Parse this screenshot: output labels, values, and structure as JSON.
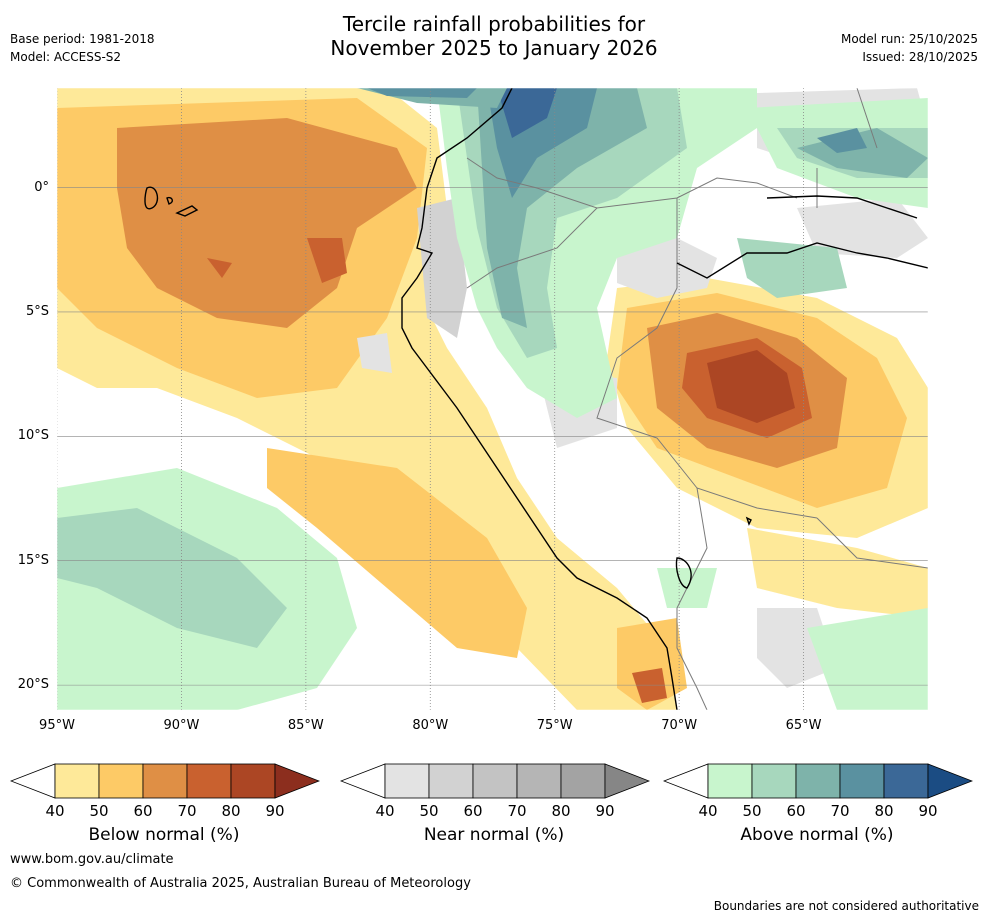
{
  "header": {
    "title_line1": "Tercile rainfall probabilities for",
    "title_line2": "November 2025 to January 2026",
    "base_period": "Base period: 1981-2018",
    "model": "Model: ACCESS-S2",
    "model_run": "Model run: 25/10/2025",
    "issued": "Issued: 28/10/2025"
  },
  "map": {
    "lon_labels": [
      "95°W",
      "90°W",
      "85°W",
      "80°W",
      "75°W",
      "70°W",
      "65°W"
    ],
    "lat_labels": [
      "0°",
      "5°S",
      "10°S",
      "15°S",
      "20°S"
    ],
    "lon_values": [
      -95,
      -90,
      -85,
      -80,
      -75,
      -70,
      -65
    ],
    "lat_values": [
      0,
      -5,
      -10,
      -15,
      -20
    ],
    "extent": {
      "lon_min": -95,
      "lon_max": -60,
      "lat_min": -21,
      "lat_max": 4
    }
  },
  "colorbars": [
    {
      "label": "Below normal (%)",
      "ticks": [
        "40",
        "50",
        "60",
        "70",
        "80",
        "90"
      ],
      "colors": [
        "#fee999",
        "#fdca66",
        "#df8f45",
        "#c9612f",
        "#ac4624",
        "#8c2e1e"
      ]
    },
    {
      "label": "Near normal (%)",
      "ticks": [
        "40",
        "50",
        "60",
        "70",
        "80",
        "90"
      ],
      "colors": [
        "#e3e3e3",
        "#d2d2d2",
        "#c3c3c3",
        "#b5b5b5",
        "#a3a3a3",
        "#868686"
      ]
    },
    {
      "label": "Above normal (%)",
      "ticks": [
        "40",
        "50",
        "60",
        "70",
        "80",
        "90"
      ],
      "colors": [
        "#c8f5cd",
        "#a7d7bd",
        "#7eb3aa",
        "#5a91a0",
        "#3b6897",
        "#1b4c83"
      ]
    }
  ],
  "footer": {
    "url": "www.bom.gov.au/climate",
    "copyright": "© Commonwealth of Australia 2025, Australian Bureau of Meteorology",
    "disclaimer": "Boundaries are not considered authoritative"
  },
  "colors": {
    "grid": "#888888",
    "coast": "#000000",
    "border": "#7a7a7a"
  }
}
